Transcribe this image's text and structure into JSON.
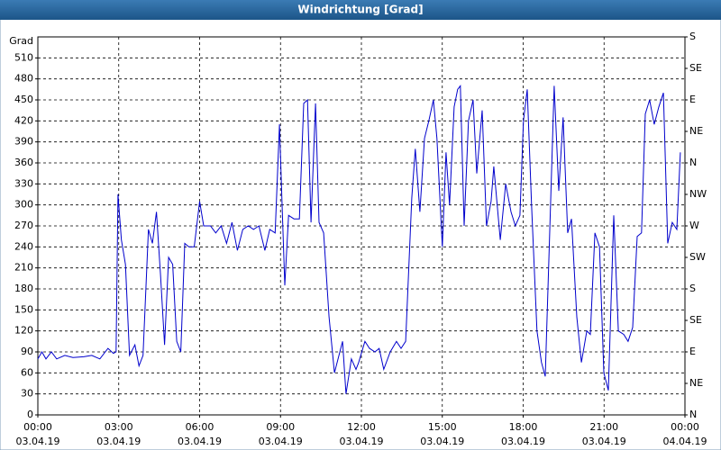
{
  "chart_data": {
    "type": "line",
    "title": "Windrichtung [Grad]",
    "y_label": "Grad",
    "color": "#0000cc",
    "grid": true,
    "x": [
      0,
      0.15,
      0.3,
      0.5,
      0.7,
      1.0,
      1.3,
      1.7,
      2.0,
      2.3,
      2.6,
      2.8,
      2.9,
      2.97,
      3.1,
      3.25,
      3.4,
      3.6,
      3.75,
      3.9,
      4.1,
      4.25,
      4.4,
      4.55,
      4.7,
      4.85,
      5.0,
      5.15,
      5.3,
      5.45,
      5.6,
      5.8,
      6.0,
      6.15,
      6.4,
      6.6,
      6.8,
      7.0,
      7.2,
      7.4,
      7.6,
      7.8,
      8.0,
      8.2,
      8.42,
      8.6,
      8.8,
      8.96,
      9.06,
      9.16,
      9.3,
      9.5,
      9.7,
      9.86,
      10.0,
      10.13,
      10.3,
      10.43,
      10.6,
      10.8,
      11.0,
      11.3,
      11.43,
      11.63,
      11.8,
      11.9,
      12.13,
      12.3,
      12.5,
      12.66,
      12.83,
      13.07,
      13.3,
      13.47,
      13.64,
      13.87,
      14.0,
      14.17,
      14.34,
      14.5,
      14.67,
      14.8,
      15.0,
      15.14,
      15.27,
      15.44,
      15.57,
      15.67,
      15.81,
      15.97,
      16.14,
      16.28,
      16.48,
      16.64,
      16.81,
      16.91,
      17.15,
      17.35,
      17.55,
      17.71,
      17.88,
      18.01,
      18.15,
      18.31,
      18.51,
      18.68,
      18.82,
      18.98,
      19.15,
      19.32,
      19.48,
      19.65,
      19.79,
      19.99,
      20.16,
      20.36,
      20.49,
      20.66,
      20.83,
      20.99,
      21.16,
      21.36,
      21.53,
      21.73,
      21.89,
      22.06,
      22.23,
      22.39,
      22.53,
      22.69,
      22.86,
      23.03,
      23.2,
      23.36,
      23.53,
      23.7,
      23.83
    ],
    "values": [
      80,
      90,
      80,
      90,
      80,
      85,
      82,
      83,
      85,
      80,
      95,
      88,
      90,
      315,
      250,
      215,
      85,
      100,
      70,
      85,
      265,
      245,
      290,
      200,
      100,
      225,
      215,
      105,
      90,
      245,
      240,
      240,
      305,
      270,
      270,
      260,
      270,
      245,
      275,
      235,
      265,
      270,
      265,
      270,
      235,
      265,
      260,
      415,
      300,
      185,
      285,
      280,
      280,
      445,
      450,
      275,
      445,
      275,
      260,
      140,
      60,
      105,
      30,
      80,
      65,
      75,
      105,
      95,
      90,
      95,
      65,
      90,
      105,
      95,
      105,
      310,
      380,
      290,
      395,
      420,
      450,
      395,
      240,
      375,
      300,
      440,
      465,
      470,
      270,
      420,
      450,
      345,
      435,
      270,
      305,
      355,
      250,
      330,
      290,
      270,
      285,
      420,
      465,
      300,
      120,
      75,
      55,
      255,
      470,
      320,
      425,
      260,
      280,
      140,
      75,
      120,
      115,
      260,
      240,
      60,
      35,
      285,
      120,
      115,
      105,
      125,
      255,
      260,
      430,
      450,
      415,
      440,
      460,
      245,
      275,
      265,
      375
    ],
    "xlim": [
      0,
      24
    ],
    "xticks": [
      {
        "value": 0,
        "label": "00:00",
        "date": "03.04.19"
      },
      {
        "value": 3,
        "label": "03:00",
        "date": "03.04.19"
      },
      {
        "value": 6,
        "label": "06:00",
        "date": "03.04.19"
      },
      {
        "value": 9,
        "label": "09:00",
        "date": "03.04.19"
      },
      {
        "value": 12,
        "label": "12:00",
        "date": "03.04.19"
      },
      {
        "value": 15,
        "label": "15:00",
        "date": "03.04.19"
      },
      {
        "value": 18,
        "label": "18:00",
        "date": "03.04.19"
      },
      {
        "value": 21,
        "label": "21:00",
        "date": "03.04.19"
      },
      {
        "value": 24,
        "label": "00:00",
        "date": "04.04.19"
      }
    ],
    "ylim": [
      0,
      540
    ],
    "yticks": [
      0,
      30,
      60,
      90,
      120,
      150,
      180,
      210,
      240,
      270,
      300,
      330,
      360,
      390,
      420,
      450,
      480,
      510
    ],
    "y2lim": [
      0,
      540
    ],
    "y2ticks": [
      {
        "value": 0,
        "label": "N"
      },
      {
        "value": 45,
        "label": "NE"
      },
      {
        "value": 90,
        "label": "E"
      },
      {
        "value": 135,
        "label": "SE"
      },
      {
        "value": 180,
        "label": "S"
      },
      {
        "value": 225,
        "label": "SW"
      },
      {
        "value": 270,
        "label": "W"
      },
      {
        "value": 315,
        "label": "NW"
      },
      {
        "value": 360,
        "label": "N"
      },
      {
        "value": 405,
        "label": "NE"
      },
      {
        "value": 450,
        "label": "E"
      },
      {
        "value": 495,
        "label": "SE"
      },
      {
        "value": 540,
        "label": "S"
      }
    ]
  }
}
